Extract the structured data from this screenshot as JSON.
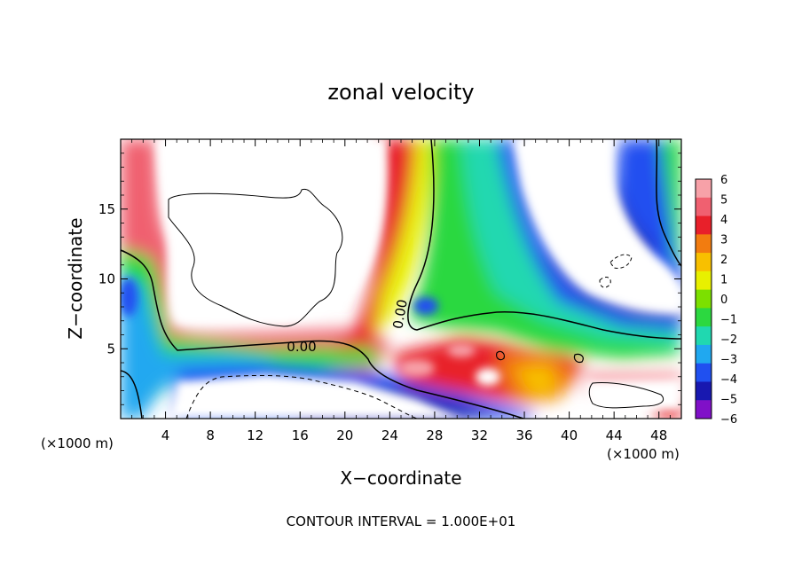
{
  "chart_data": {
    "type": "heatmap",
    "title": "zonal velocity",
    "xlabel": "X−coordinate",
    "ylabel": "Z−coordinate",
    "x_unit_left": "(×1000 m)",
    "x_unit_right": "(×1000 m)",
    "xlim": [
      0,
      50
    ],
    "ylim": [
      0,
      20
    ],
    "x_ticks": [
      4,
      8,
      12,
      16,
      20,
      24,
      28,
      32,
      36,
      40,
      44,
      48
    ],
    "x_tick_labels": [
      "4",
      "8",
      "12",
      "16",
      "20",
      "24",
      "28",
      "32",
      "36",
      "40",
      "44",
      "48"
    ],
    "y_ticks": [
      5,
      10,
      15
    ],
    "y_tick_labels": [
      "5",
      "10",
      "15"
    ],
    "colorbar": {
      "values": [
        6,
        5,
        4,
        3,
        2,
        1,
        0,
        -1,
        -2,
        -3,
        -4,
        -5,
        -6
      ],
      "labels": [
        "6",
        "5",
        "4",
        "3",
        "2",
        "1",
        "0",
        "−1",
        "−2",
        "−3",
        "−4",
        "−5",
        "−6"
      ],
      "colors": [
        "#f7a1a8",
        "#f06070",
        "#e8202a",
        "#f27c10",
        "#f8c000",
        "#e8f000",
        "#7ce000",
        "#2cd840",
        "#20d8b0",
        "#20a8f0",
        "#2050f0",
        "#1818b0",
        "#8010c8"
      ]
    },
    "contour_label": "0.00",
    "contour_interval": "CONTOUR INTERVAL = 1.000E+01",
    "grid": false,
    "legend_position": "right"
  }
}
